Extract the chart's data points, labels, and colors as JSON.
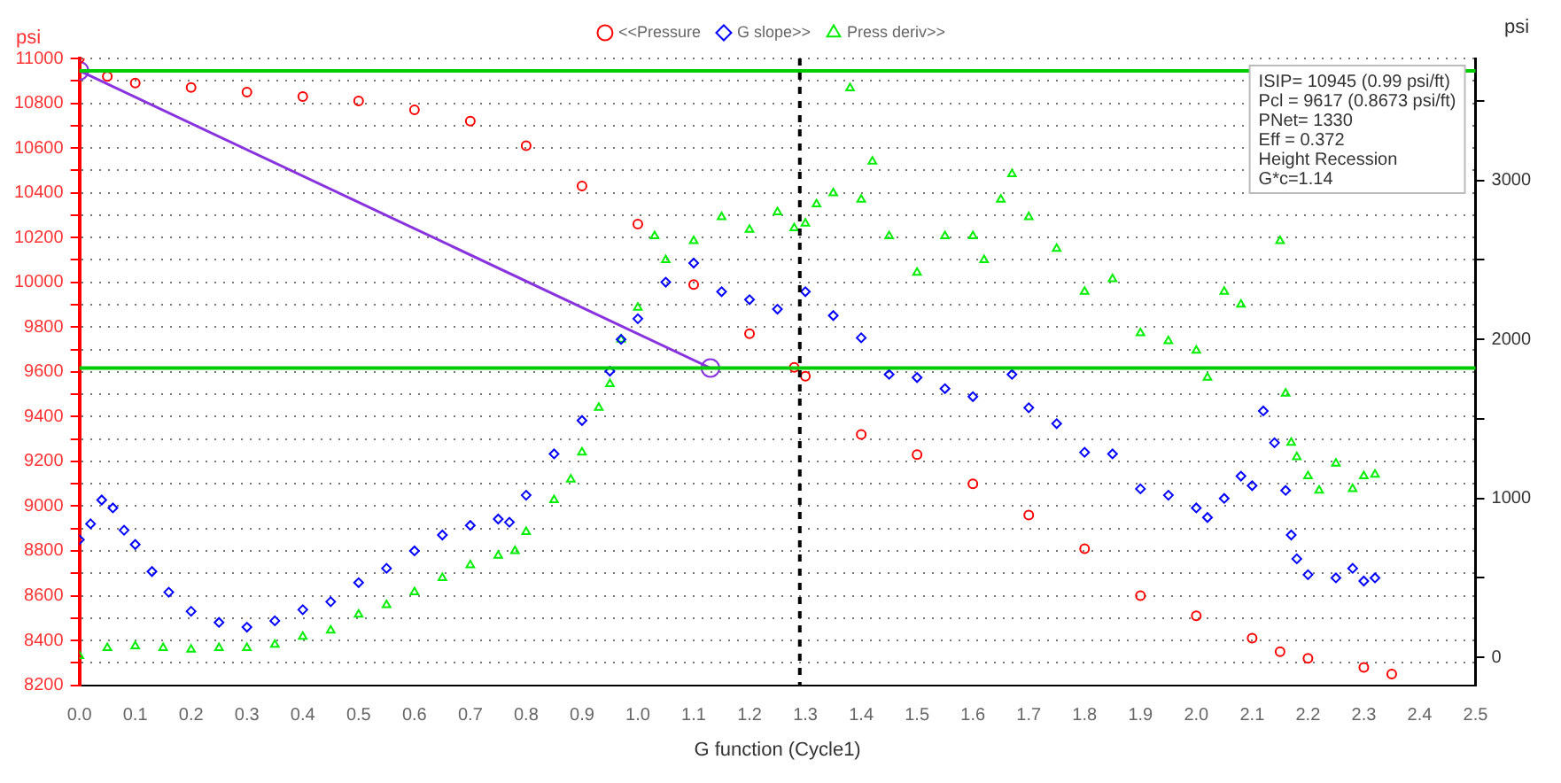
{
  "chart_data": {
    "type": "scatter",
    "xlabel": "G function (Cycle1)",
    "ylabel": "psi",
    "y2label": "psi",
    "xlim": [
      0,
      2.5
    ],
    "xticks": [
      {
        "value": 0,
        "label": "0.0"
      },
      {
        "value": 0.1,
        "label": "0.1"
      },
      {
        "value": 0.2,
        "label": "0.2"
      },
      {
        "value": 0.3,
        "label": "0.3"
      },
      {
        "value": 0.4,
        "label": "0.4"
      },
      {
        "value": 0.5,
        "label": "0.5"
      },
      {
        "value": 0.6,
        "label": "0.6"
      },
      {
        "value": 0.7,
        "label": "0.7"
      },
      {
        "value": 0.8,
        "label": "0.8"
      },
      {
        "value": 0.9,
        "label": "0.9"
      },
      {
        "value": 1,
        "label": "1.0"
      },
      {
        "value": 1.1,
        "label": "1.1"
      },
      {
        "value": 1.2,
        "label": "1.2"
      },
      {
        "value": 1.3,
        "label": "1.3"
      },
      {
        "value": 1.4,
        "label": "1.4"
      },
      {
        "value": 1.5,
        "label": "1.5"
      },
      {
        "value": 1.6,
        "label": "1.6"
      },
      {
        "value": 1.7,
        "label": "1.7"
      },
      {
        "value": 1.8,
        "label": "1.8"
      },
      {
        "value": 1.9,
        "label": "1.9"
      },
      {
        "value": 2,
        "label": "2.0"
      },
      {
        "value": 2.1,
        "label": "2.1"
      },
      {
        "value": 2.2,
        "label": "2.2"
      },
      {
        "value": 2.3,
        "label": "2.3"
      },
      {
        "value": 2.4,
        "label": "2.4"
      },
      {
        "value": 2.5,
        "label": "2.5"
      }
    ],
    "ylim": [
      8200,
      11000
    ],
    "yticks": [
      8200,
      {
        "value": 8300,
        "label": null
      },
      8400,
      {
        "value": 8500,
        "label": null
      },
      8600,
      {
        "value": 8700,
        "label": null
      },
      8800,
      {
        "value": 8900,
        "label": null
      },
      9000,
      {
        "value": 9100,
        "label": null
      },
      9200,
      {
        "value": 9300,
        "label": null
      },
      9400,
      {
        "value": 9500,
        "label": null
      },
      9600,
      {
        "value": 9700,
        "label": null
      },
      9800,
      {
        "value": 9900,
        "label": null
      },
      10000,
      {
        "value": 10100,
        "label": null
      },
      10200,
      {
        "value": 10300,
        "label": null
      },
      10400,
      {
        "value": 10500,
        "label": null
      },
      10600,
      {
        "value": 10700,
        "label": null
      },
      10800,
      {
        "value": 10900,
        "label": null
      },
      11000
    ],
    "y2lim": [
      -175,
      3767
    ],
    "y2ticks": [
      0,
      {
        "value": 500,
        "label": null
      },
      1000,
      {
        "value": 1500,
        "label": null
      },
      2000,
      {
        "value": 2500,
        "label": null
      },
      3000,
      {
        "value": 3500,
        "label": null
      }
    ],
    "grid": "y",
    "legend": "top",
    "annotations": [
      "ISIP= 10945 (0.99 psi/ft)",
      "Pcl = 9617 (0.8673 psi/ft)",
      "PNet= 1330",
      "Eff = 0.372",
      "Height Recession",
      "G*c=1.14"
    ],
    "ref_lines": [
      {
        "axis": "y",
        "value": 10945,
        "color": "#00cc00",
        "line_style": "solid"
      },
      {
        "axis": "y",
        "value": 9617,
        "color": "#00cc00",
        "line_style": "solid"
      },
      {
        "axis": "x",
        "value": 1.29,
        "color": "#000000",
        "line_style": "dashed"
      }
    ],
    "series": [
      {
        "name": "<<Pressure",
        "color": "#ff0000",
        "marker": "circle",
        "x": [
          0,
          0.05,
          0.1,
          0.2,
          0.3,
          0.4,
          0.5,
          0.6,
          0.7,
          0.8,
          0.9,
          1.0,
          1.1,
          1.2,
          1.28,
          1.3,
          1.4,
          1.5,
          1.6,
          1.7,
          1.8,
          1.9,
          2.0,
          2.1,
          2.15,
          2.2,
          2.3,
          2.35
        ],
        "values": [
          11000,
          10920,
          10890,
          10870,
          10850,
          10830,
          10810,
          10770,
          10720,
          10610,
          10430,
          10260,
          9990,
          9770,
          9620,
          9580,
          9320,
          9230,
          9100,
          8960,
          8810,
          8600,
          8510,
          8410,
          8350,
          8320,
          8280,
          8250
        ]
      },
      {
        "name": "G slope>>",
        "color": "#0000ff",
        "marker": "diamond",
        "axis": "y2",
        "x": [
          0,
          0.02,
          0.04,
          0.06,
          0.08,
          0.1,
          0.13,
          0.16,
          0.2,
          0.25,
          0.3,
          0.35,
          0.4,
          0.45,
          0.5,
          0.55,
          0.6,
          0.65,
          0.7,
          0.75,
          0.77,
          0.8,
          0.85,
          0.9,
          0.95,
          0.97,
          1.0,
          1.05,
          1.1,
          1.15,
          1.2,
          1.25,
          1.3,
          1.35,
          1.4,
          1.45,
          1.5,
          1.55,
          1.6,
          1.67,
          1.7,
          1.75,
          1.8,
          1.85,
          1.9,
          1.95,
          2.0,
          2.02,
          2.05,
          2.08,
          2.1,
          2.12,
          2.14,
          2.16,
          2.17,
          2.18,
          2.2,
          2.25,
          2.28,
          2.3,
          2.32
        ],
        "values": [
          740,
          840,
          990,
          940,
          800,
          710,
          540,
          410,
          290,
          220,
          190,
          230,
          300,
          350,
          470,
          560,
          670,
          770,
          830,
          870,
          850,
          1020,
          1280,
          1490,
          1800,
          2000,
          2130,
          2360,
          2480,
          2300,
          2250,
          2190,
          2300,
          2150,
          2010,
          1780,
          1760,
          1690,
          1640,
          1780,
          1570,
          1470,
          1290,
          1280,
          1060,
          1020,
          940,
          880,
          1000,
          1140,
          1080,
          1550,
          1350,
          1050,
          770,
          620,
          520,
          500,
          560,
          480,
          500
        ]
      },
      {
        "name": "Press deriv>>",
        "color": "#00ee00",
        "marker": "triangle",
        "axis": "y2",
        "x": [
          0,
          0.05,
          0.1,
          0.15,
          0.2,
          0.25,
          0.3,
          0.35,
          0.4,
          0.45,
          0.5,
          0.55,
          0.6,
          0.65,
          0.7,
          0.75,
          0.78,
          0.8,
          0.85,
          0.88,
          0.9,
          0.93,
          0.95,
          0.97,
          1.0,
          1.03,
          1.05,
          1.1,
          1.15,
          1.2,
          1.25,
          1.28,
          1.3,
          1.32,
          1.35,
          1.38,
          1.4,
          1.42,
          1.45,
          1.5,
          1.55,
          1.6,
          1.62,
          1.65,
          1.67,
          1.7,
          1.75,
          1.8,
          1.85,
          1.9,
          1.95,
          2.0,
          2.02,
          2.05,
          2.08,
          2.15,
          2.16,
          2.17,
          2.18,
          2.2,
          2.22,
          2.25,
          2.28,
          2.3,
          2.32
        ],
        "values": [
          10,
          60,
          70,
          60,
          50,
          60,
          60,
          80,
          130,
          170,
          270,
          330,
          410,
          500,
          580,
          640,
          670,
          790,
          990,
          1120,
          1290,
          1570,
          1720,
          2000,
          2200,
          2650,
          2500,
          2620,
          2770,
          2690,
          2800,
          2700,
          2730,
          2850,
          2920,
          3580,
          2880,
          3120,
          2650,
          2420,
          2650,
          2650,
          2500,
          2880,
          3040,
          2770,
          2570,
          2300,
          2380,
          2040,
          1990,
          1930,
          1760,
          2300,
          2220,
          2620,
          1660,
          1350,
          1260,
          1140,
          1050,
          1220,
          1060,
          1140,
          1150
        ]
      },
      {
        "type": "line",
        "color": "#8833dd",
        "marker": "circle",
        "x": [
          0,
          1.13
        ],
        "values": [
          10945,
          9617
        ]
      }
    ]
  }
}
